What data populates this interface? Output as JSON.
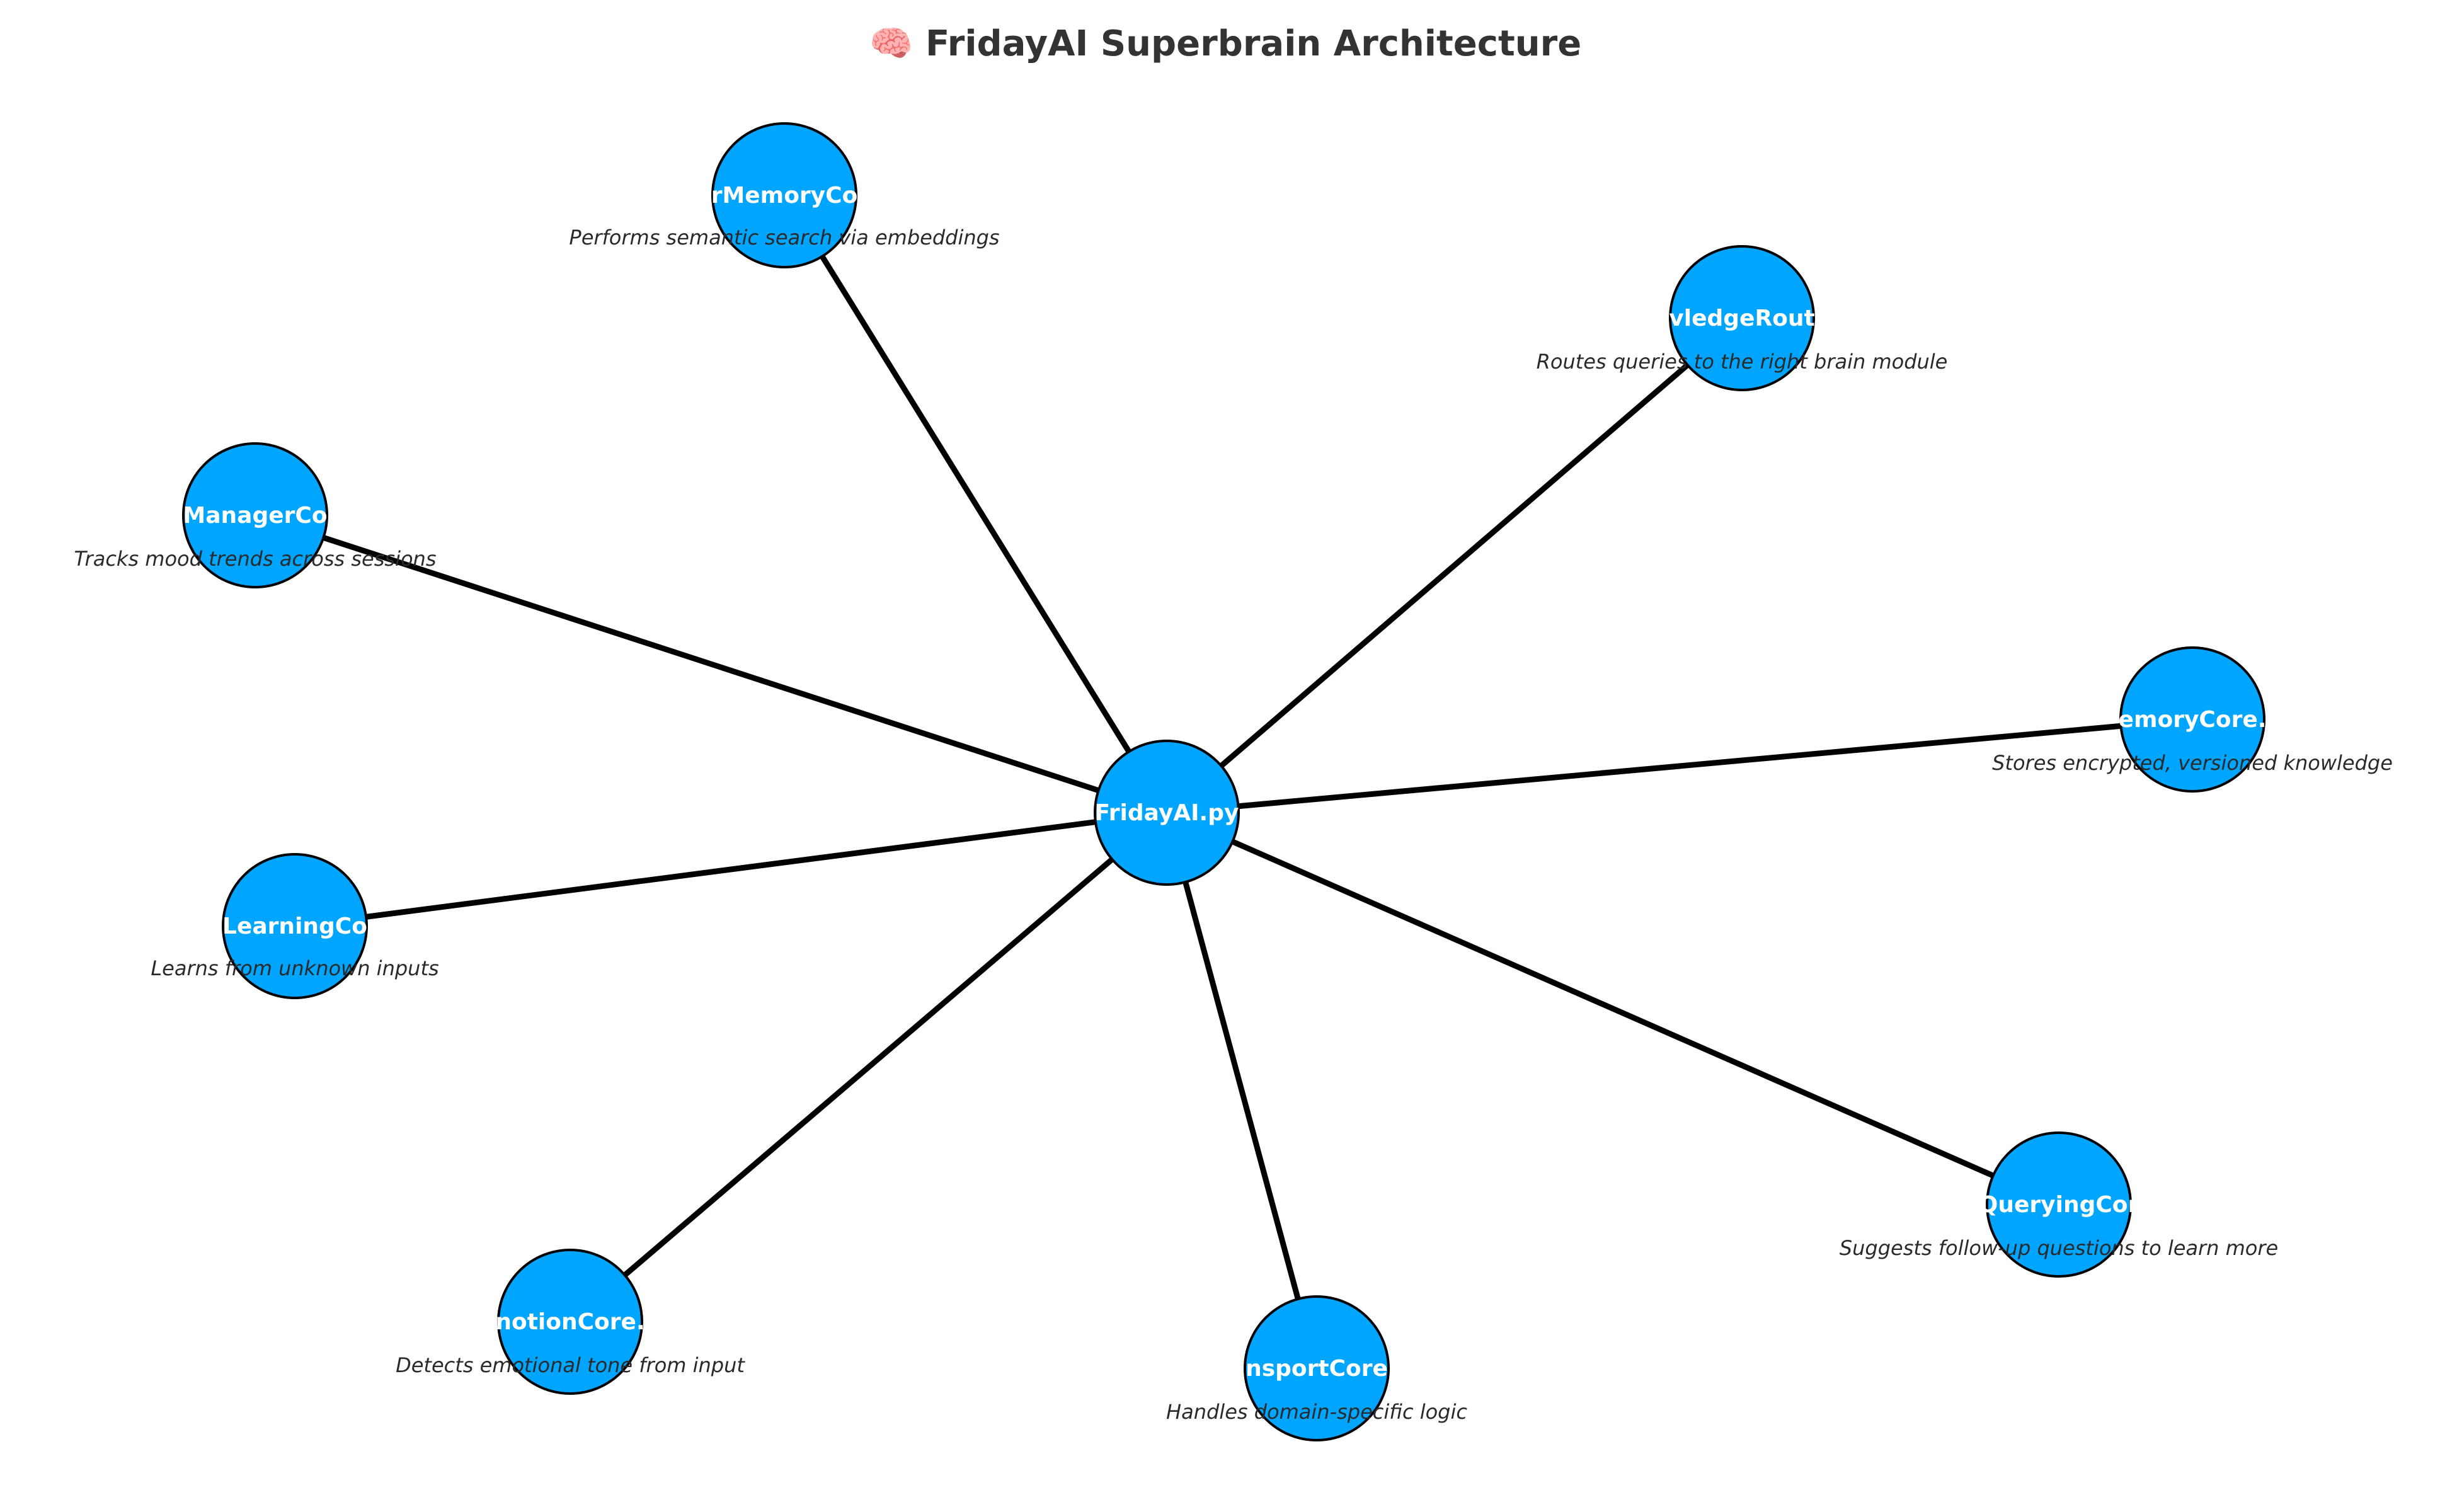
{
  "title": "🧠 FridayAI Superbrain Architecture",
  "colors": {
    "node_fill": "#00a5ff",
    "edge": "#000000",
    "title": "#333333",
    "label": "#ffffff"
  },
  "center": {
    "id": "fridayai",
    "label": "FridayAI.py"
  },
  "nodes": [
    {
      "id": "vector-memory-core",
      "label": "rMemoryCo",
      "desc": "Performs semantic search via embeddings"
    },
    {
      "id": "knowledge-router",
      "label": "vledgeRout",
      "desc": "Routes queries to the right brain module"
    },
    {
      "id": "mood-manager-core",
      "label": "ManagerCo",
      "desc": "Tracks mood trends across sessions"
    },
    {
      "id": "memory-core",
      "label": "emoryCore.",
      "desc": "Stores encrypted, versioned knowledge"
    },
    {
      "id": "learning-core",
      "label": "LearningCo",
      "desc": "Learns from unknown inputs"
    },
    {
      "id": "querying-core",
      "label": "QueryingCor",
      "desc": "Suggests follow-up questions to learn more"
    },
    {
      "id": "emotion-core",
      "label": "notionCore.",
      "desc": "Detects emotional tone from input"
    },
    {
      "id": "transport-core",
      "label": "nsportCore",
      "desc": "Handles domain-specific logic"
    }
  ]
}
